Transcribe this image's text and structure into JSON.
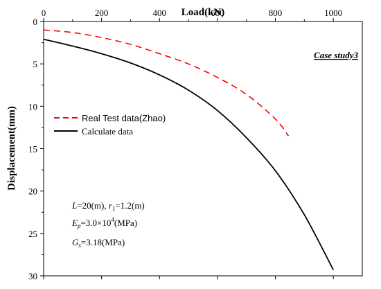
{
  "chart_data": {
    "type": "line",
    "xlabel": "Load(kN)",
    "ylabel": "Displacement(mm)",
    "xlim": [
      0,
      1100
    ],
    "ylim": [
      0,
      30
    ],
    "y_inverted": true,
    "x_axis_position": "top",
    "x_ticks": [
      0,
      200,
      400,
      600,
      800,
      1000
    ],
    "y_ticks": [
      0,
      5,
      10,
      15,
      20,
      25,
      30
    ],
    "grid": false,
    "legend_position": "left-middle",
    "series": [
      {
        "name": "Real Test data(Zhao)",
        "style": "dashed",
        "color": "#ff0000",
        "x": [
          0,
          100,
          200,
          300,
          400,
          500,
          600,
          700,
          800,
          845
        ],
        "y": [
          1.0,
          1.3,
          1.9,
          2.7,
          3.8,
          5.0,
          6.6,
          8.6,
          11.5,
          13.5
        ]
      },
      {
        "name": "Calculate data",
        "style": "solid",
        "color": "#000000",
        "x": [
          0,
          100,
          200,
          300,
          400,
          500,
          600,
          700,
          800,
          900,
          1000
        ],
        "y": [
          2.1,
          2.9,
          3.8,
          4.9,
          6.3,
          8.1,
          10.5,
          13.7,
          17.6,
          22.8,
          29.3
        ]
      }
    ],
    "annotations": {
      "case_label": "Case study3",
      "line1": {
        "L": "L",
        "L_val": "=20(m), ",
        "r": "r",
        "r_sub": "1",
        "r_val": "=1.2(m)"
      },
      "line2": {
        "E": "E",
        "E_sub": "p",
        "E_val": "=3.0×10",
        "E_sup": "4",
        "E_unit": "(MPa)"
      },
      "line3": {
        "G": "G",
        "G_sub": "s",
        "G_val": "=3.18(MPa)"
      }
    }
  }
}
